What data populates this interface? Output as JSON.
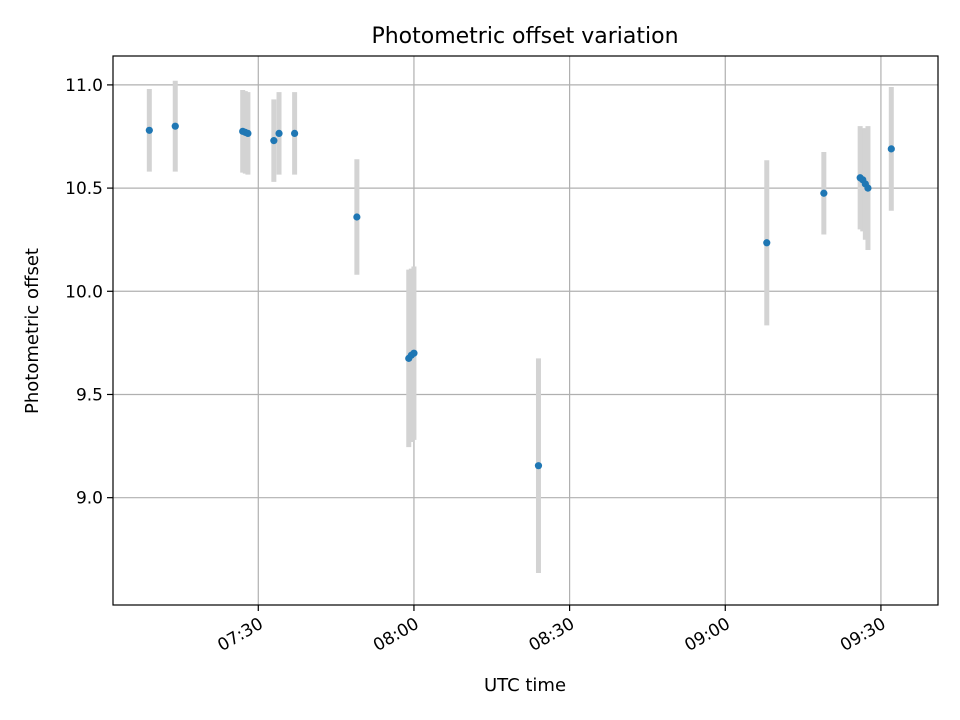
{
  "chart_data": {
    "type": "scatter",
    "title": "Photometric offset variation",
    "xlabel": "UTC time",
    "ylabel": "Photometric offset",
    "x_ticks": [
      "07:30",
      "08:00",
      "08:30",
      "09:00",
      "09:30"
    ],
    "y_ticks": [
      "9.0",
      "9.5",
      "10.0",
      "10.5",
      "11.0"
    ],
    "ylim": [
      8.48,
      11.14
    ],
    "xlim": [
      "07:02",
      "09:41"
    ],
    "grid": true,
    "colors": {
      "point": "#1f77b4",
      "errorbar": "#d3d3d3",
      "grid": "#b0b0b0"
    },
    "points": [
      {
        "x": "07:09",
        "y": 10.78,
        "yerr": 0.2
      },
      {
        "x": "07:14",
        "y": 10.8,
        "yerr": 0.22
      },
      {
        "x": "07:27",
        "y": 10.775,
        "yerr": 0.2
      },
      {
        "x": "07:27.5",
        "y": 10.77,
        "yerr": 0.2
      },
      {
        "x": "07:28",
        "y": 10.765,
        "yerr": 0.2
      },
      {
        "x": "07:33",
        "y": 10.73,
        "yerr": 0.2
      },
      {
        "x": "07:34",
        "y": 10.765,
        "yerr": 0.2
      },
      {
        "x": "07:37",
        "y": 10.765,
        "yerr": 0.2
      },
      {
        "x": "07:49",
        "y": 10.36,
        "yerr": 0.28
      },
      {
        "x": "07:59",
        "y": 9.675,
        "yerr": 0.43
      },
      {
        "x": "07:59.5",
        "y": 9.69,
        "yerr": 0.42
      },
      {
        "x": "08:00",
        "y": 9.7,
        "yerr": 0.42
      },
      {
        "x": "08:24",
        "y": 9.155,
        "yerr": 0.52
      },
      {
        "x": "09:08",
        "y": 10.235,
        "yerr": 0.4
      },
      {
        "x": "09:19",
        "y": 10.475,
        "yerr": 0.2
      },
      {
        "x": "09:26",
        "y": 10.55,
        "yerr": 0.25
      },
      {
        "x": "09:26.5",
        "y": 10.54,
        "yerr": 0.25
      },
      {
        "x": "09:27",
        "y": 10.52,
        "yerr": 0.27
      },
      {
        "x": "09:27.5",
        "y": 10.5,
        "yerr": 0.3
      },
      {
        "x": "09:32",
        "y": 10.69,
        "yerr": 0.3
      }
    ]
  }
}
